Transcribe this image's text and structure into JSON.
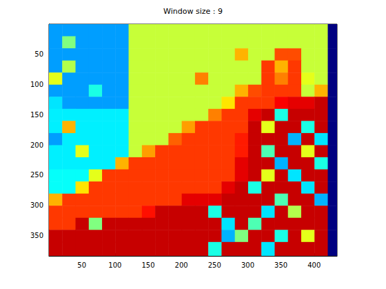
{
  "chart_data": {
    "type": "heatmap",
    "title": "Window size : 9",
    "x_edges": [
      0.5,
      20.5,
      40.5,
      60.5,
      80.5,
      100.5,
      120.5,
      140.5,
      160.5,
      180.5,
      200.5,
      220.5,
      240.5,
      260.5,
      280.5,
      300.5,
      320.5,
      340.5,
      360.5,
      380.5,
      400.5,
      420.5,
      434.5
    ],
    "y_edges": [
      0.5,
      20.5,
      40.5,
      60.5,
      80.5,
      100.5,
      120.5,
      140.5,
      160.5,
      180.5,
      200.5,
      220.5,
      240.5,
      260.5,
      280.5,
      300.5,
      320.5,
      340.5,
      360.5,
      383.5
    ],
    "cells": [
      [
        28,
        28,
        28,
        28,
        28,
        28,
        57,
        57,
        57,
        57,
        57,
        57,
        57,
        57,
        57,
        57,
        57,
        57,
        57,
        57,
        57,
        0
      ],
      [
        28,
        50,
        28,
        28,
        28,
        28,
        57,
        57,
        57,
        57,
        57,
        57,
        57,
        57,
        57,
        57,
        57,
        57,
        57,
        57,
        57,
        0
      ],
      [
        28,
        28,
        28,
        28,
        28,
        28,
        57,
        57,
        57,
        57,
        57,
        57,
        57,
        57,
        70,
        57,
        57,
        80,
        80,
        57,
        57,
        0
      ],
      [
        28,
        55,
        28,
        28,
        28,
        28,
        57,
        57,
        57,
        57,
        57,
        57,
        57,
        57,
        57,
        57,
        82,
        70,
        82,
        57,
        57,
        0
      ],
      [
        60,
        28,
        28,
        28,
        28,
        28,
        57,
        57,
        57,
        57,
        57,
        75,
        57,
        57,
        57,
        57,
        82,
        75,
        82,
        60,
        57,
        0
      ],
      [
        28,
        28,
        28,
        40,
        28,
        28,
        57,
        57,
        57,
        57,
        57,
        57,
        57,
        57,
        70,
        80,
        82,
        82,
        82,
        57,
        70,
        0
      ],
      [
        35,
        28,
        28,
        28,
        28,
        28,
        57,
        57,
        57,
        57,
        57,
        57,
        57,
        65,
        82,
        82,
        82,
        88,
        90,
        90,
        93,
        0
      ],
      [
        36,
        36,
        36,
        36,
        36,
        36,
        57,
        57,
        57,
        57,
        57,
        57,
        75,
        82,
        82,
        90,
        93,
        40,
        93,
        93,
        93,
        0
      ],
      [
        36,
        70,
        36,
        36,
        36,
        36,
        57,
        57,
        57,
        57,
        72,
        82,
        82,
        82,
        82,
        93,
        60,
        93,
        93,
        40,
        93,
        0
      ],
      [
        28,
        36,
        36,
        36,
        36,
        36,
        57,
        57,
        57,
        78,
        82,
        82,
        82,
        82,
        85,
        93,
        93,
        93,
        30,
        93,
        35,
        0
      ],
      [
        36,
        36,
        60,
        36,
        36,
        36,
        57,
        72,
        82,
        82,
        82,
        82,
        82,
        82,
        85,
        93,
        45,
        93,
        93,
        60,
        93,
        0
      ],
      [
        36,
        36,
        36,
        36,
        36,
        70,
        82,
        82,
        82,
        82,
        82,
        82,
        82,
        82,
        90,
        93,
        93,
        30,
        93,
        93,
        40,
        0
      ],
      [
        38,
        38,
        38,
        60,
        82,
        82,
        82,
        82,
        82,
        82,
        82,
        82,
        82,
        82,
        90,
        93,
        60,
        93,
        35,
        93,
        93,
        0
      ],
      [
        38,
        38,
        65,
        82,
        82,
        82,
        82,
        82,
        82,
        82,
        82,
        82,
        82,
        90,
        93,
        40,
        93,
        93,
        93,
        35,
        93,
        0
      ],
      [
        70,
        82,
        82,
        82,
        82,
        82,
        82,
        82,
        82,
        82,
        90,
        90,
        90,
        93,
        93,
        93,
        93,
        45,
        93,
        93,
        30,
        0
      ],
      [
        82,
        82,
        82,
        82,
        82,
        82,
        82,
        86,
        93,
        93,
        93,
        93,
        40,
        93,
        93,
        93,
        35,
        93,
        55,
        93,
        93,
        0
      ],
      [
        82,
        82,
        93,
        50,
        93,
        93,
        93,
        93,
        93,
        93,
        93,
        93,
        93,
        35,
        93,
        45,
        93,
        93,
        93,
        93,
        93,
        0
      ],
      [
        93,
        93,
        93,
        93,
        93,
        93,
        93,
        93,
        93,
        93,
        93,
        93,
        93,
        30,
        50,
        93,
        93,
        40,
        93,
        60,
        93,
        0
      ],
      [
        93,
        93,
        93,
        93,
        93,
        93,
        93,
        93,
        93,
        93,
        93,
        93,
        40,
        93,
        93,
        93,
        35,
        93,
        93,
        93,
        93,
        0
      ]
    ],
    "clim": [
      0,
      100
    ],
    "xlim": [
      0.5,
      434.5
    ],
    "ylim": [
      0.5,
      383.5
    ],
    "xticks": [
      50,
      100,
      150,
      200,
      250,
      300,
      350,
      400
    ],
    "yticks": [
      50,
      100,
      150,
      200,
      250,
      300,
      350
    ]
  }
}
